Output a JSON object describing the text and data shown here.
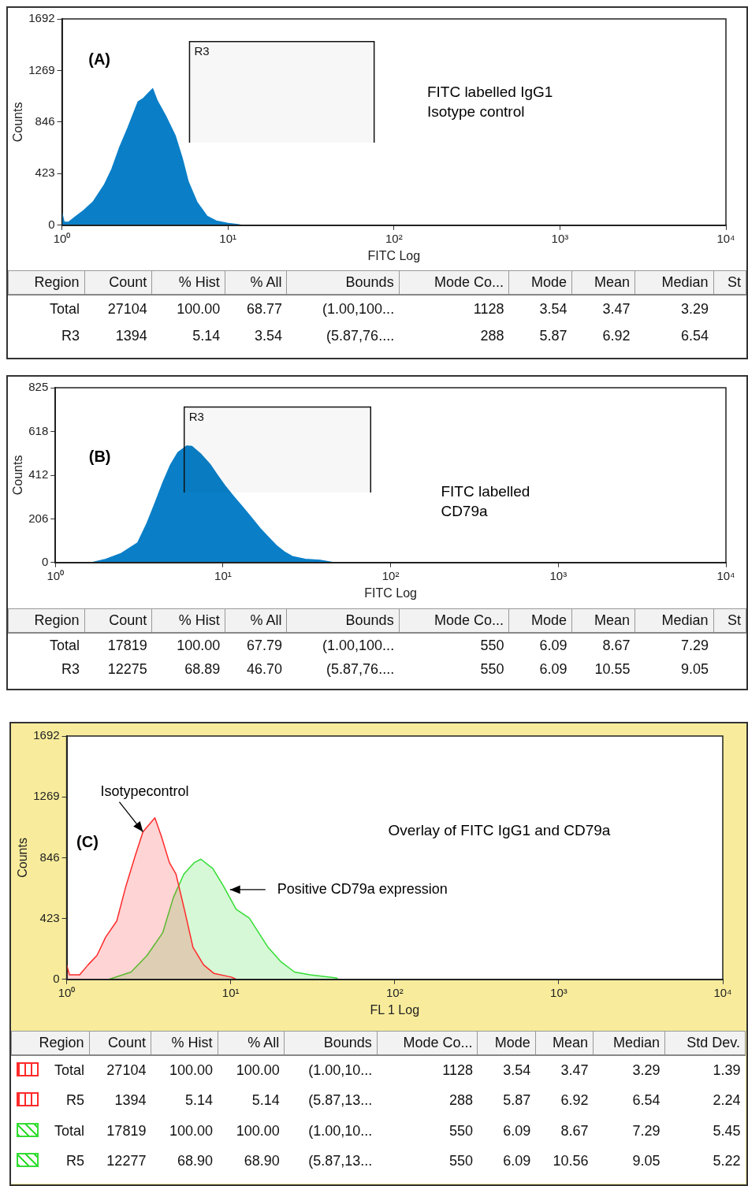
{
  "chart_data": [
    {
      "type": "area",
      "xlabel": "FITC Log",
      "ylabel": "Counts",
      "log": "x",
      "grid": false,
      "xlim": [
        1,
        10000
      ],
      "xticks": [
        {
          "value": 1,
          "label": "10⁰"
        },
        {
          "value": 10,
          "label": "10¹"
        },
        {
          "value": 100,
          "label": "10²"
        },
        {
          "value": 1000,
          "label": "10³"
        },
        {
          "value": 10000,
          "label": "10⁴"
        }
      ],
      "ylim": [
        0,
        1692
      ],
      "yticks": [
        0,
        423,
        846,
        1269,
        1692
      ],
      "series": [
        {
          "color": "#0a7fc8",
          "x": [
            1,
            1.03,
            1.1,
            1.19,
            1.35,
            1.54,
            1.8,
            2.0,
            2.23,
            2.5,
            2.88,
            3.1,
            3.3,
            3.52,
            3.75,
            4.2,
            4.82,
            5.3,
            5.77,
            6.5,
            7.48,
            8.5,
            10,
            11.5,
            12
          ],
          "values": [
            100,
            25,
            25,
            63,
            120,
            190,
            330,
            460,
            640,
            800,
            1013,
            1040,
            1080,
            1119,
            1020,
            900,
            731,
            550,
            355,
            190,
            73,
            35,
            15,
            5,
            0
          ]
        }
      ],
      "bands": [
        {
          "axis": "x",
          "from": 5.87,
          "to": 76,
          "label": "R3"
        }
      ],
      "annotations": [
        "(A)",
        "FITC labelled IgG1\nIsotype control"
      ]
    },
    {
      "type": "other",
      "categories": [
        "Region",
        "Count",
        "% Hist",
        "% All",
        "Bounds",
        "Mode Co...",
        "Mode",
        "Mean",
        "Median",
        "St"
      ],
      "y_categories": [
        "Total",
        "R3"
      ],
      "annotations": [
        "27104",
        "100.00",
        "68.77",
        "(1.00,100...",
        "1128",
        "3.54",
        "3.47",
        "3.29",
        "1394",
        "5.14",
        "3.54",
        "(5.87,76....",
        "288",
        "5.87",
        "6.92",
        "6.54"
      ]
    },
    {
      "type": "area",
      "xlabel": "FITC Log",
      "ylabel": "Counts",
      "log": "x",
      "grid": false,
      "xlim": [
        1,
        10000
      ],
      "xticks": [
        {
          "value": 1,
          "label": "10⁰"
        },
        {
          "value": 10,
          "label": "10¹"
        },
        {
          "value": 100,
          "label": "10²"
        },
        {
          "value": 1000,
          "label": "10³"
        },
        {
          "value": 10000,
          "label": "10⁴"
        }
      ],
      "ylim": [
        0,
        825
      ],
      "yticks": [
        0,
        206,
        412,
        618,
        825
      ],
      "series": [
        {
          "color": "#0a7fc8",
          "x": [
            1.67,
            2.0,
            2.45,
            3.1,
            3.5,
            3.92,
            4.4,
            4.87,
            5.4,
            5.85,
            6.09,
            6.52,
            7.4,
            8.4,
            9.3,
            10.4,
            11.6,
            13.0,
            14.8,
            16.7,
            18.6,
            20.8,
            23.2,
            25.9,
            31,
            38,
            45
          ],
          "values": [
            0,
            15,
            41,
            93,
            180,
            277,
            380,
            461,
            520,
            540,
            550,
            548,
            510,
            461,
            410,
            356,
            310,
            264,
            210,
            159,
            120,
            80,
            50,
            28,
            15,
            10,
            0
          ]
        }
      ],
      "bands": [
        {
          "axis": "x",
          "from": 5.87,
          "to": 76,
          "label": "R3"
        }
      ],
      "annotations": [
        "(B)",
        "FITC labelled\nCD79a"
      ]
    },
    {
      "type": "other",
      "categories": [
        "Region",
        "Count",
        "% Hist",
        "% All",
        "Bounds",
        "Mode Co...",
        "Mode",
        "Mean",
        "Median",
        "St"
      ],
      "y_categories": [
        "Total",
        "R3"
      ],
      "annotations": [
        "17819",
        "100.00",
        "67.79",
        "(1.00,100...",
        "550",
        "6.09",
        "8.67",
        "7.29",
        "12275",
        "68.89",
        "46.70",
        "(5.87,76....",
        "550",
        "6.09",
        "10.55",
        "9.05"
      ]
    },
    {
      "type": "area",
      "xlabel": "FL 1 Log",
      "ylabel": "Counts",
      "log": "x",
      "grid": false,
      "xlim": [
        1,
        10000
      ],
      "xticks": [
        {
          "value": 1,
          "label": "10⁰"
        },
        {
          "value": 10,
          "label": "10¹"
        },
        {
          "value": 100,
          "label": "10²"
        },
        {
          "value": 1000,
          "label": "10³"
        },
        {
          "value": 10000,
          "label": "10⁴"
        }
      ],
      "ylim": [
        0,
        1692
      ],
      "yticks": [
        0,
        423,
        846,
        1269,
        1692
      ],
      "series": [
        {
          "color": "#ff2a2a",
          "x": [
            1,
            1.04,
            1.2,
            1.35,
            1.53,
            1.73,
            2.02,
            2.3,
            2.61,
            2.92,
            3.2,
            3.45,
            3.78,
            4.23,
            4.64,
            5.27,
            5.89,
            6.84,
            7.92,
            10.1,
            10.8
          ],
          "values": [
            101,
            32,
            32,
            101,
            166,
            294,
            406,
            650,
            855,
            1026,
            1080,
            1123,
            995,
            812,
            732,
            467,
            223,
            101,
            41,
            16,
            0
          ]
        },
        {
          "color": "#33dd33",
          "x": [
            1.81,
            2.47,
            3.09,
            3.85,
            4.47,
            5.18,
            6.0,
            6.58,
            7.78,
            9.02,
            10.8,
            13.0,
            16.9,
            20.3,
            24.5,
            30.5,
            44.2,
            45
          ],
          "values": [
            0,
            51,
            166,
            324,
            568,
            732,
            812,
            836,
            771,
            650,
            487,
            426,
            223,
            121,
            51,
            32,
            10,
            0
          ]
        }
      ],
      "annotations": [
        "(C)",
        "Overlay of FITC IgG1 and CD79a",
        {
          "text": "Isotypecontrol",
          "x": 2.92,
          "y": 1026
        },
        {
          "text": "Positive CD79a expression",
          "x": 9.9,
          "y": 624
        }
      ]
    },
    {
      "type": "other",
      "categories": [
        "Region",
        "Count",
        "% Hist",
        "% All",
        "Bounds",
        "Mode Co...",
        "Mode",
        "Mean",
        "Median",
        "Std Dev."
      ],
      "y_categories": [
        "Total",
        "R5",
        "Total",
        "R5"
      ],
      "annotations": [
        "27104",
        "100.00",
        "100.00",
        "(1.00,10...",
        "1128",
        "3.54",
        "3.47",
        "3.29",
        "1.39",
        "1394",
        "5.14",
        "5.14",
        "(5.87,13...",
        "288",
        "5.87",
        "6.92",
        "6.54",
        "2.24",
        "17819",
        "100.00",
        "100.00",
        "(1.00,10...",
        "550",
        "6.09",
        "8.67",
        "7.29",
        "5.45",
        "12277",
        "68.90",
        "68.90",
        "(5.87,13...",
        "550",
        "6.09",
        "10.56",
        "9.05",
        "5.22"
      ]
    }
  ]
}
